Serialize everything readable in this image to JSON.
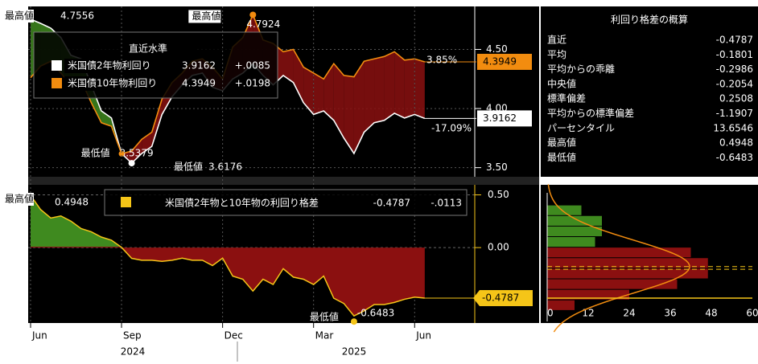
{
  "chart_data": [
    {
      "type": "line",
      "legend_title": "直近水準",
      "max_label": "最高値",
      "min_label": "最低値",
      "pct_labels": [
        "3.85%",
        "-17.09%"
      ],
      "ylim": [
        3.45,
        4.85
      ],
      "yticks": [
        {
          "value": 3.5,
          "label": "3.50"
        },
        {
          "value": 4.0,
          "label": "4.00"
        },
        {
          "value": 4.5,
          "label": "4.50"
        }
      ],
      "series": [
        {
          "name": "米国債2年物利回り",
          "color": "#ffffff",
          "change": "+.0085",
          "values": [
            4.7556,
            4.72,
            4.68,
            4.6,
            4.45,
            4.42,
            4.2,
            3.98,
            3.92,
            3.62,
            3.5379,
            3.62,
            3.68,
            3.95,
            4.1,
            4.2,
            4.28,
            4.3,
            4.18,
            4.15,
            4.25,
            4.3,
            4.38,
            4.28,
            4.2,
            4.28,
            4.22,
            4.05,
            3.95,
            3.98,
            3.9,
            3.75,
            3.62,
            3.8,
            3.88,
            3.9,
            3.96,
            3.92,
            3.95,
            3.9162
          ]
        },
        {
          "name": "米国債10年物利回り",
          "color": "#f28c0f",
          "change": "+.0198",
          "values": [
            4.2608,
            4.36,
            4.4,
            4.3,
            4.2,
            4.24,
            4.05,
            3.88,
            3.85,
            3.6176,
            3.64,
            3.74,
            3.8,
            4.08,
            4.22,
            4.3,
            4.4,
            4.42,
            4.35,
            4.25,
            4.52,
            4.6,
            4.7924,
            4.58,
            4.55,
            4.48,
            4.5,
            4.35,
            4.3,
            4.25,
            4.38,
            4.28,
            4.2683,
            4.4,
            4.42,
            4.44,
            4.48,
            4.41,
            4.42,
            4.3949
          ]
        }
      ]
    },
    {
      "type": "area",
      "max_label": "最高値",
      "min_label": "最低値",
      "categories": [
        "Jun",
        null,
        null,
        null,
        null,
        null,
        null,
        null,
        null,
        "Sep",
        null,
        null,
        null,
        null,
        null,
        null,
        null,
        null,
        null,
        "Dec",
        null,
        null,
        null,
        null,
        null,
        null,
        null,
        null,
        "Mar",
        null,
        null,
        null,
        null,
        null,
        null,
        null,
        null,
        null,
        "Jun",
        null
      ],
      "year_labels": [
        "2024",
        "2025"
      ],
      "ylim": [
        -0.7,
        0.58
      ],
      "yticks": [
        {
          "value": 0.0,
          "label": "0.00"
        },
        {
          "value": 0.5,
          "label": "0.50"
        }
      ],
      "series": [
        {
          "name": "米国債2年物と10年物の利回り格差",
          "color": "#f5c518",
          "change": "-.0113",
          "values": [
            0.4948,
            0.36,
            0.28,
            0.3,
            0.25,
            0.18,
            0.15,
            0.1,
            0.07,
            0.0024,
            -0.1021,
            -0.12,
            -0.12,
            -0.13,
            -0.12,
            -0.1,
            -0.12,
            -0.12,
            -0.17,
            -0.1,
            -0.27,
            -0.3,
            -0.4124,
            -0.3,
            -0.35,
            -0.2,
            -0.28,
            -0.3,
            -0.35,
            -0.27,
            -0.48,
            -0.53,
            -0.6483,
            -0.6,
            -0.54,
            -0.54,
            -0.52,
            -0.49,
            -0.47,
            -0.4787
          ]
        }
      ]
    },
    {
      "type": "histogram",
      "bins": [
        -0.6,
        -0.5,
        -0.4,
        -0.3,
        -0.2,
        -0.1,
        0.0,
        0.1,
        0.2,
        0.3,
        0.4
      ],
      "counts": [
        8,
        24,
        38,
        47,
        47,
        42,
        14,
        16,
        16,
        10
      ],
      "xlim": [
        0,
        60
      ],
      "xticks": [
        0,
        12,
        24,
        36,
        48,
        60
      ]
    }
  ],
  "stats_panel": {
    "title": "利回り格差の概算",
    "rows": [
      {
        "label": "直近",
        "value": -0.4787
      },
      {
        "label": "平均",
        "value": -0.1801
      },
      {
        "label": "平均からの乖離",
        "value": -0.2986
      },
      {
        "label": "中央値",
        "value": -0.2054
      },
      {
        "label": "標準偏差",
        "value": 0.2508
      },
      {
        "label": "平均からの標準偏差",
        "value": -1.1907
      },
      {
        "label": "パーセンタイル",
        "value": 13.6546
      },
      {
        "label": "最高値",
        "value": 0.4948
      },
      {
        "label": "最低値",
        "value": -0.6483
      }
    ]
  }
}
